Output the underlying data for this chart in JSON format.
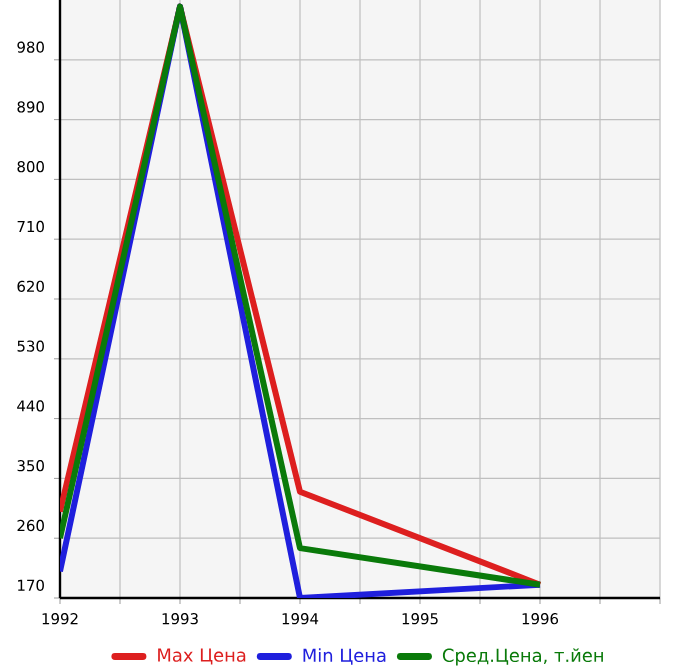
{
  "chart_data": {
    "type": "line",
    "xlim": [
      1992,
      1997
    ],
    "ylim": [
      170,
      1070
    ],
    "xticks": [
      1992,
      {
        "value": 1992.5,
        "label": null
      },
      1993,
      {
        "value": 1993.5,
        "label": null
      },
      1994,
      {
        "value": 1994.5,
        "label": null
      },
      1995,
      {
        "value": 1995.5,
        "label": null
      },
      1996,
      {
        "value": 1996.5,
        "label": null
      },
      {
        "value": 1997,
        "label": null
      }
    ],
    "yticks": [
      170,
      260,
      350,
      440,
      530,
      620,
      710,
      800,
      890,
      980
    ],
    "grid": true,
    "legend": "bottom",
    "series": [
      {
        "name": "Max Цена",
        "color": "#dd1f1f",
        "x": [
          1992,
          1993,
          1994,
          1996
        ],
        "values": [
          300,
          1060,
          330,
          190
        ]
      },
      {
        "name": "Min Цена",
        "color": "#1f1fdd",
        "x": [
          1992,
          1993,
          1994,
          1996
        ],
        "values": [
          210,
          1060,
          170,
          190
        ]
      },
      {
        "name": "Сред.Цена, т.йен",
        "color": "#0a7a0a",
        "x": [
          1992,
          1993,
          1994,
          1996
        ],
        "values": [
          260,
          1060,
          245,
          190
        ]
      }
    ]
  }
}
